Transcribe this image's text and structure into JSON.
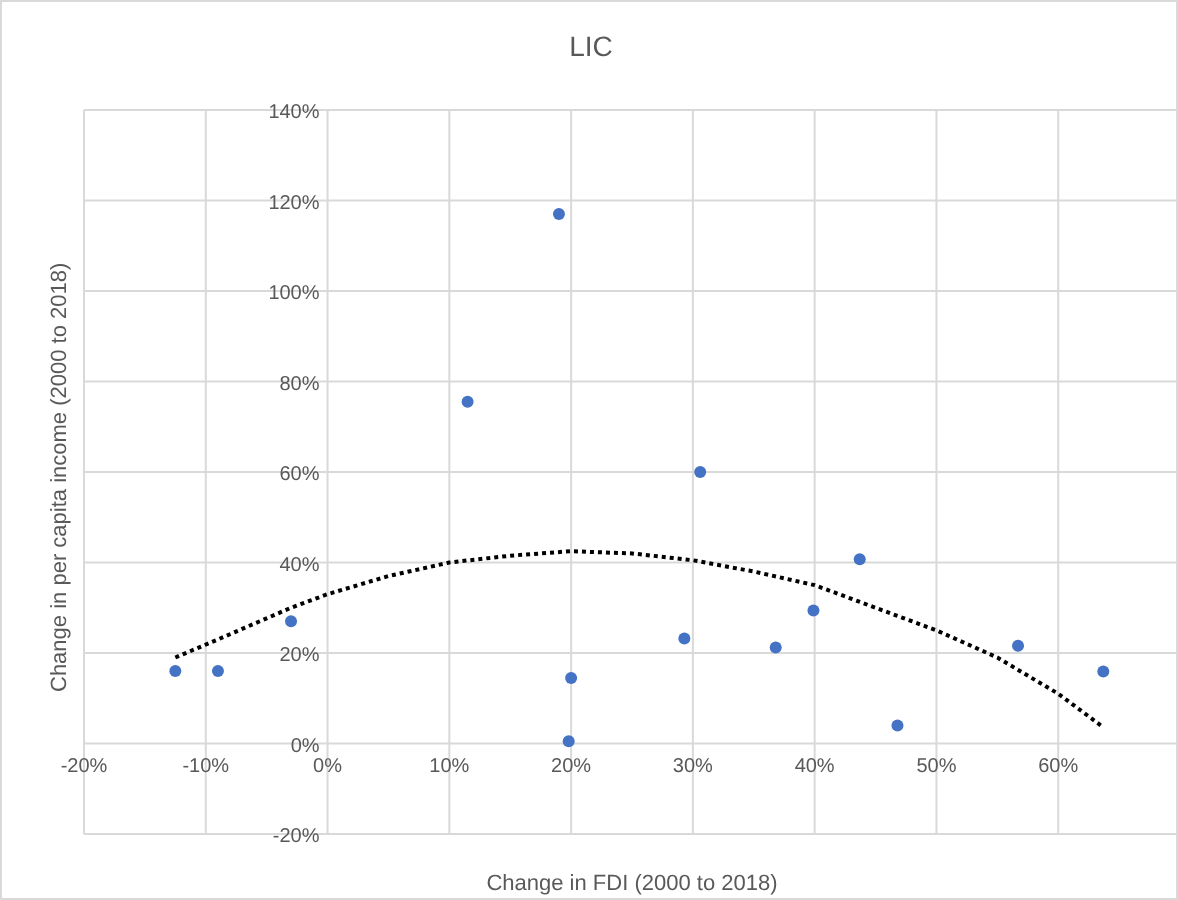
{
  "chart_data": {
    "type": "scatter",
    "title": "LIC",
    "xlabel": "Change in FDI (2000 to 2018)",
    "ylabel": "Change in per capita income (2000 to 2018)",
    "xlim": [
      -20,
      70
    ],
    "ylim": [
      -20,
      140
    ],
    "xticks": [
      {
        "value": -20,
        "label": "-20%"
      },
      {
        "value": -10,
        "label": "-10%"
      },
      {
        "value": 0,
        "label": "0%"
      },
      {
        "value": 10,
        "label": "10%"
      },
      {
        "value": 20,
        "label": "20%"
      },
      {
        "value": 30,
        "label": "30%"
      },
      {
        "value": 40,
        "label": "40%"
      },
      {
        "value": 50,
        "label": "50%"
      },
      {
        "value": 60,
        "label": "60%"
      }
    ],
    "yticks": [
      {
        "value": -20,
        "label": "-20%"
      },
      {
        "value": 0,
        "label": "0%"
      },
      {
        "value": 20,
        "label": "20%"
      },
      {
        "value": 40,
        "label": "40%"
      },
      {
        "value": 60,
        "label": "60%"
      },
      {
        "value": 80,
        "label": "80%"
      },
      {
        "value": 100,
        "label": "100%"
      },
      {
        "value": 120,
        "label": "120%"
      },
      {
        "value": 140,
        "label": "140%"
      }
    ],
    "grid": true,
    "legend": false,
    "series": [
      {
        "color": "#4472c4",
        "marker": "circle",
        "x": [
          -12.5,
          -9,
          -3,
          11.5,
          19,
          20,
          19.8,
          30.6,
          29.3,
          36.8,
          39.9,
          43.7,
          46.8,
          56.7,
          63.7
        ],
        "values": [
          16,
          16,
          27,
          75.5,
          117,
          14.5,
          0.5,
          60,
          23.2,
          21.2,
          29.4,
          40.7,
          4,
          21.6,
          15.9
        ]
      },
      {
        "type": "line",
        "color": "#000000",
        "line_style": "dotted",
        "marker": "none",
        "x": [
          -12.5,
          -9,
          -3,
          0,
          5,
          10,
          15,
          20,
          25,
          30,
          35,
          40,
          45,
          50,
          55,
          60,
          63.5
        ],
        "values": [
          19,
          23,
          30,
          33,
          37,
          40,
          41.5,
          42.5,
          42,
          40.5,
          38,
          35,
          30,
          25,
          19,
          11,
          4
        ]
      }
    ]
  }
}
